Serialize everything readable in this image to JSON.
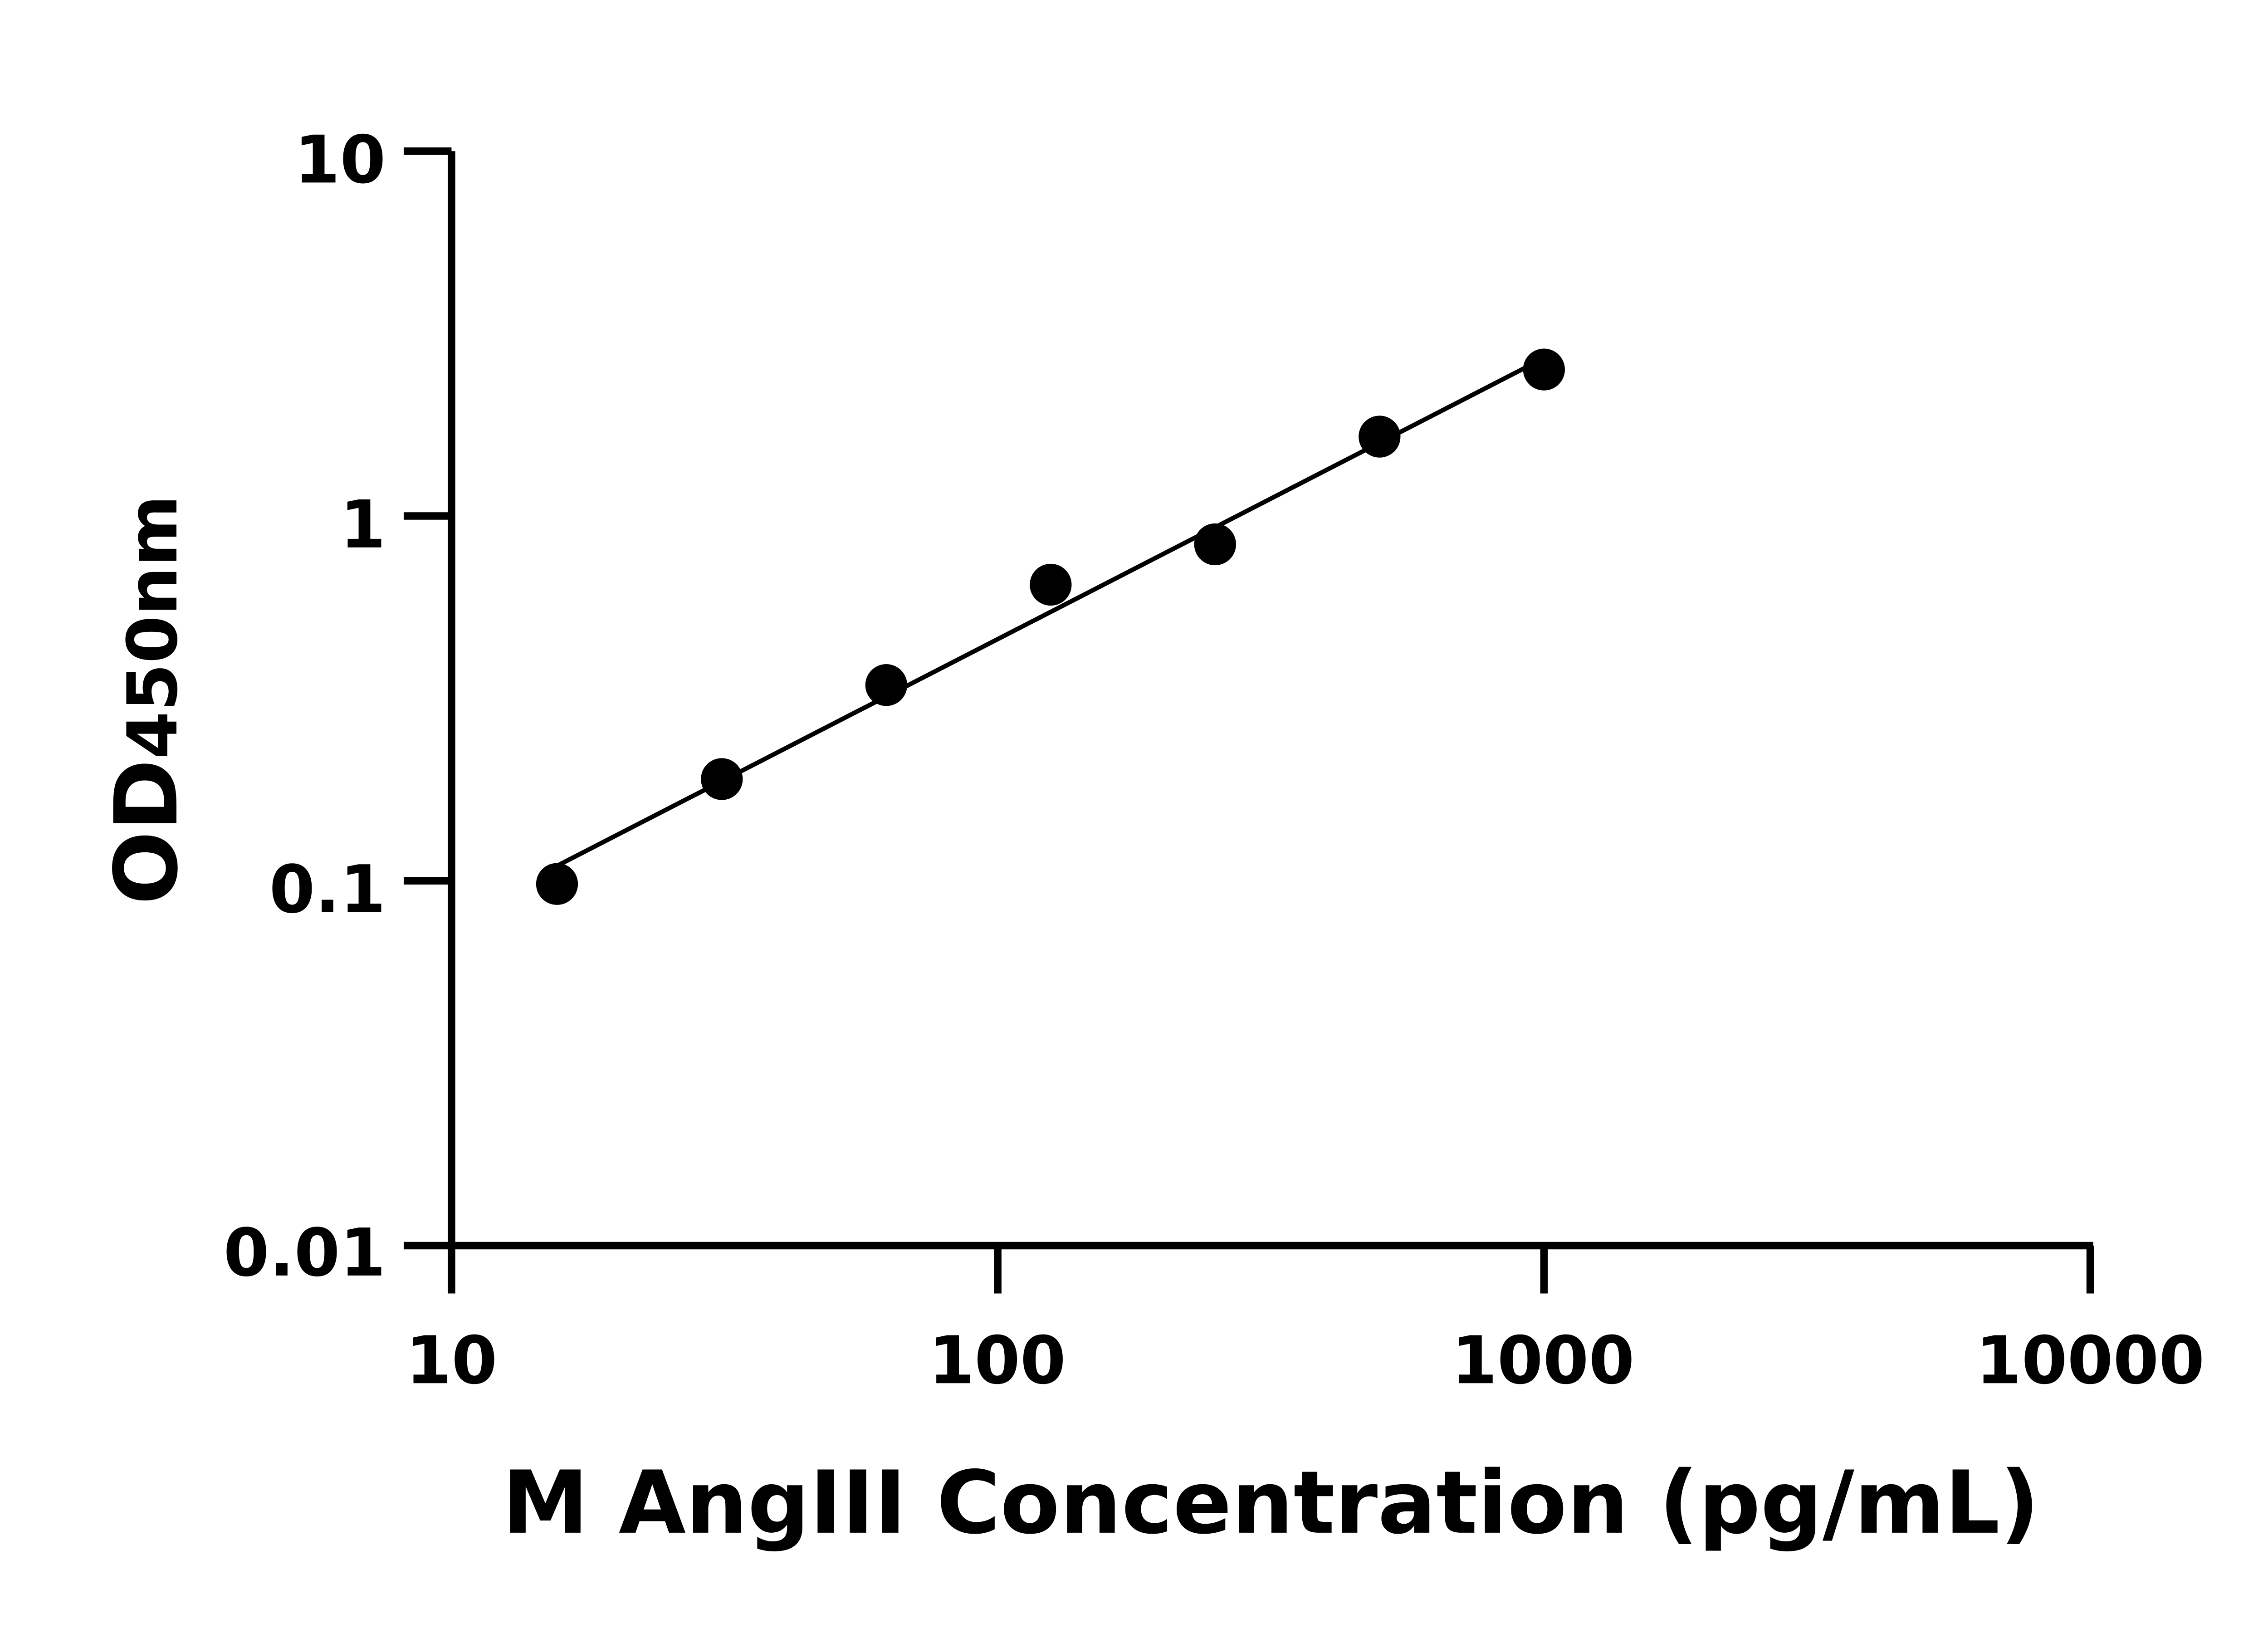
{
  "chart_data": {
    "type": "scatter",
    "title": "",
    "xlabel": "M AngIII Concentration (pg/mL)",
    "ylabel_main": "OD",
    "ylabel_sub": "450nm",
    "x_scale": "log",
    "y_scale": "log",
    "xlim": [
      10,
      10000
    ],
    "ylim": [
      0.01,
      10
    ],
    "x_ticks": [
      "10",
      "100",
      "1000",
      "10000"
    ],
    "y_ticks": [
      "0.01",
      "0.1",
      "1",
      "10"
    ],
    "grid": false,
    "fit_line": "log-log linear fit",
    "points": [
      {
        "x": 15.6,
        "y": 0.098
      },
      {
        "x": 31.25,
        "y": 0.19
      },
      {
        "x": 62.5,
        "y": 0.344
      },
      {
        "x": 125,
        "y": 0.648
      },
      {
        "x": 250,
        "y": 0.836
      },
      {
        "x": 500,
        "y": 1.65
      },
      {
        "x": 1000,
        "y": 2.52
      }
    ],
    "colors": {
      "marker": "#000000",
      "line": "#000000",
      "axis": "#000000"
    }
  }
}
